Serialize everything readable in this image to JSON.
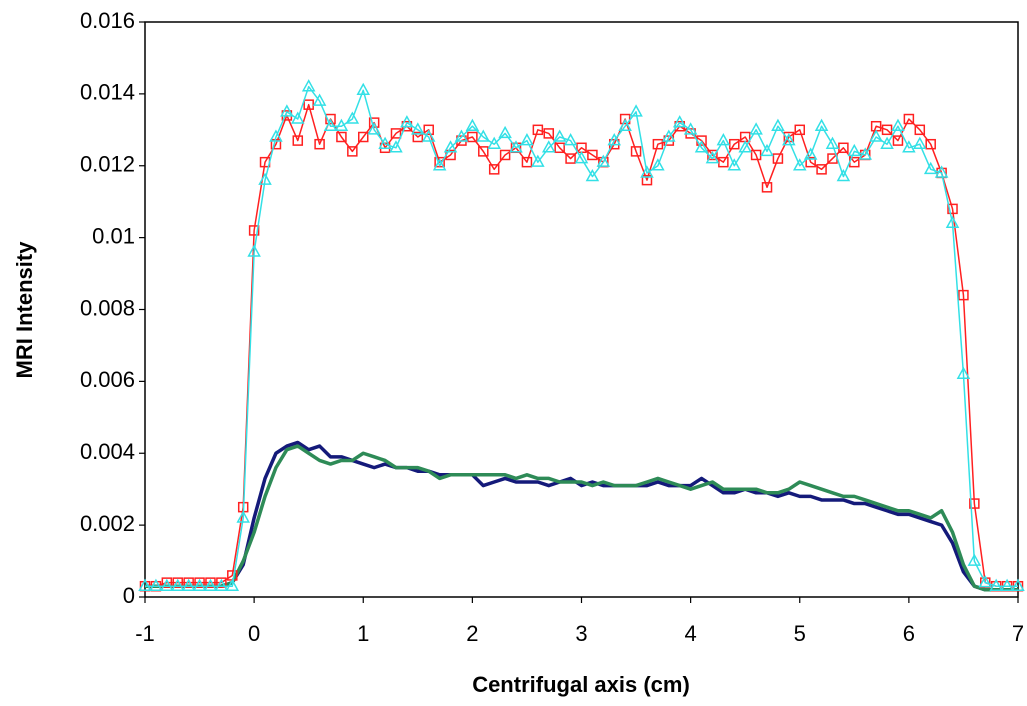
{
  "chart_data": {
    "type": "line",
    "x_label": "Centrifugal axis (cm)",
    "y_label": "MRI Intensity",
    "x": [
      -1,
      -0.9,
      -0.8,
      -0.7,
      -0.6,
      -0.5,
      -0.4,
      -0.3,
      -0.2,
      -0.1,
      0,
      0.1,
      0.2,
      0.3,
      0.4,
      0.5,
      0.6,
      0.7,
      0.8,
      0.9,
      1,
      1.1,
      1.2,
      1.3,
      1.4,
      1.5,
      1.6,
      1.7,
      1.8,
      1.9,
      2,
      2.1,
      2.2,
      2.3,
      2.4,
      2.5,
      2.6,
      2.7,
      2.8,
      2.9,
      3,
      3.1,
      3.2,
      3.3,
      3.4,
      3.5,
      3.6,
      3.7,
      3.8,
      3.9,
      4,
      4.1,
      4.2,
      4.3,
      4.4,
      4.5,
      4.6,
      4.7,
      4.8,
      4.9,
      5,
      5.1,
      5.2,
      5.3,
      5.4,
      5.5,
      5.6,
      5.7,
      5.8,
      5.9,
      6,
      6.1,
      6.2,
      6.3,
      6.4,
      6.5,
      6.6,
      6.7,
      6.8,
      6.9,
      7
    ],
    "series": [
      {
        "color": "#ff2020",
        "marker": "square",
        "values": [
          0.0003,
          0.0003,
          0.0004,
          0.0004,
          0.0004,
          0.0004,
          0.0004,
          0.0004,
          0.0006,
          0.0025,
          0.0102,
          0.0121,
          0.0126,
          0.0134,
          0.0127,
          0.0137,
          0.0126,
          0.0133,
          0.0128,
          0.0124,
          0.0128,
          0.0132,
          0.0125,
          0.0129,
          0.0131,
          0.0128,
          0.013,
          0.0121,
          0.0123,
          0.0127,
          0.0128,
          0.0124,
          0.0119,
          0.0123,
          0.0125,
          0.0121,
          0.013,
          0.0129,
          0.0125,
          0.0122,
          0.0125,
          0.0123,
          0.0121,
          0.0126,
          0.0133,
          0.0124,
          0.0116,
          0.0126,
          0.0127,
          0.0131,
          0.0129,
          0.0127,
          0.0123,
          0.0121,
          0.0126,
          0.0128,
          0.0123,
          0.0114,
          0.0122,
          0.0128,
          0.013,
          0.0121,
          0.0119,
          0.0122,
          0.0125,
          0.0121,
          0.0123,
          0.0131,
          0.013,
          0.0127,
          0.0133,
          0.013,
          0.0126,
          0.0118,
          0.0108,
          0.0084,
          0.0026,
          0.0004,
          0.0003,
          0.0003,
          0.0003
        ]
      },
      {
        "color": "#33e0e6",
        "marker": "triangle",
        "values": [
          0.0003,
          0.0003,
          0.0003,
          0.0003,
          0.0003,
          0.0003,
          0.0003,
          0.0003,
          0.0003,
          0.0022,
          0.0096,
          0.0116,
          0.0128,
          0.0135,
          0.0133,
          0.0142,
          0.0138,
          0.0131,
          0.0131,
          0.0133,
          0.0141,
          0.013,
          0.0126,
          0.0125,
          0.0132,
          0.013,
          0.0128,
          0.012,
          0.0125,
          0.0128,
          0.0131,
          0.0128,
          0.0126,
          0.0129,
          0.0125,
          0.0127,
          0.0121,
          0.0125,
          0.0128,
          0.0127,
          0.0122,
          0.0117,
          0.0121,
          0.0127,
          0.0131,
          0.0135,
          0.0118,
          0.012,
          0.0128,
          0.0132,
          0.013,
          0.0125,
          0.0122,
          0.0127,
          0.012,
          0.0125,
          0.013,
          0.0124,
          0.0131,
          0.0127,
          0.012,
          0.0123,
          0.0131,
          0.0126,
          0.0117,
          0.0124,
          0.0123,
          0.0128,
          0.0126,
          0.0131,
          0.0125,
          0.0126,
          0.0119,
          0.0118,
          0.0104,
          0.0062,
          0.001,
          0.0004,
          0.0003,
          0.0003,
          0.0003
        ]
      },
      {
        "color": "#141a7a",
        "values": [
          0.0003,
          0.0003,
          0.0003,
          0.0003,
          0.0003,
          0.0003,
          0.0003,
          0.0003,
          0.0004,
          0.0009,
          0.0022,
          0.0033,
          0.004,
          0.0042,
          0.0043,
          0.0041,
          0.0042,
          0.0039,
          0.0039,
          0.0038,
          0.0037,
          0.0036,
          0.0037,
          0.0036,
          0.0036,
          0.0035,
          0.0035,
          0.0034,
          0.0034,
          0.0034,
          0.0034,
          0.0031,
          0.0032,
          0.0033,
          0.0032,
          0.0032,
          0.0032,
          0.0031,
          0.0032,
          0.0033,
          0.0031,
          0.0032,
          0.0031,
          0.0031,
          0.0031,
          0.0031,
          0.0031,
          0.0032,
          0.0031,
          0.0031,
          0.0031,
          0.0033,
          0.0031,
          0.0029,
          0.0029,
          0.003,
          0.0029,
          0.0029,
          0.0028,
          0.0029,
          0.0028,
          0.0028,
          0.0027,
          0.0027,
          0.0027,
          0.0026,
          0.0026,
          0.0025,
          0.0024,
          0.0023,
          0.0023,
          0.0022,
          0.0021,
          0.002,
          0.0015,
          0.0007,
          0.0003,
          0.0002,
          0.0002,
          0.0002,
          0.0002
        ]
      },
      {
        "color": "#2e8b57",
        "values": [
          0.0003,
          0.0003,
          0.0003,
          0.0003,
          0.0003,
          0.0003,
          0.0003,
          0.0003,
          0.0004,
          0.001,
          0.0018,
          0.0028,
          0.0036,
          0.0041,
          0.0042,
          0.004,
          0.0038,
          0.0037,
          0.0038,
          0.0038,
          0.004,
          0.0039,
          0.0038,
          0.0036,
          0.0036,
          0.0036,
          0.0035,
          0.0033,
          0.0034,
          0.0034,
          0.0034,
          0.0034,
          0.0034,
          0.0034,
          0.0033,
          0.0034,
          0.0033,
          0.0033,
          0.0032,
          0.0032,
          0.0032,
          0.0031,
          0.0032,
          0.0031,
          0.0031,
          0.0031,
          0.0032,
          0.0033,
          0.0032,
          0.0031,
          0.003,
          0.0031,
          0.0032,
          0.003,
          0.003,
          0.003,
          0.003,
          0.0029,
          0.0029,
          0.003,
          0.0032,
          0.0031,
          0.003,
          0.0029,
          0.0028,
          0.0028,
          0.0027,
          0.0026,
          0.0025,
          0.0024,
          0.0024,
          0.0023,
          0.0022,
          0.0024,
          0.0018,
          0.0009,
          0.0003,
          0.0002,
          0.0002,
          0.0002,
          0.0002
        ]
      }
    ],
    "xlim": [
      -1,
      7
    ],
    "xticks": [
      -1,
      0,
      1,
      2,
      3,
      4,
      5,
      6,
      7
    ],
    "ylim": [
      0,
      0.016
    ],
    "yticks": [
      0,
      0.002,
      0.004,
      0.006,
      0.008,
      0.01,
      0.012,
      0.014,
      0.016
    ],
    "grid": false
  }
}
